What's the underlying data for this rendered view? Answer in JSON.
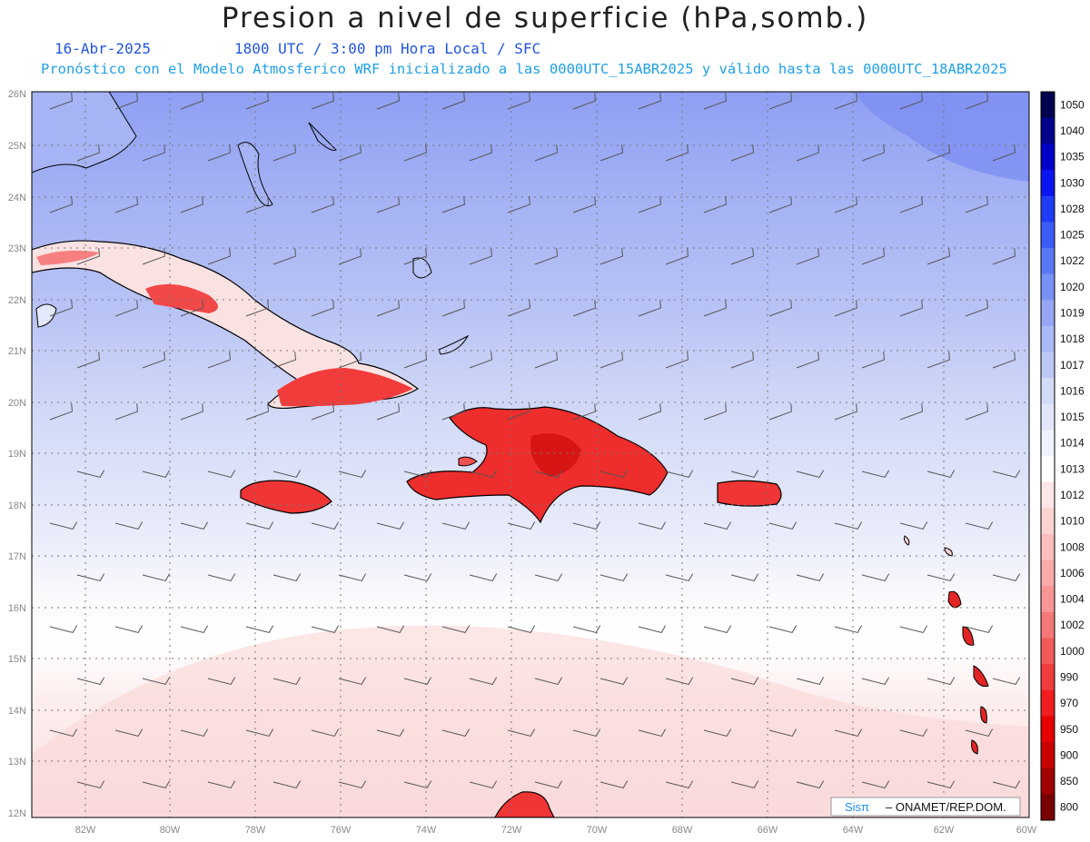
{
  "header": {
    "title": "Presion a nivel de superficie (hPa,somb.)",
    "date": "16-Abr-2025",
    "time_info": "1800 UTC / 3:00 pm Hora Local / SFC",
    "model_info": "Pronóstico con el Modelo Atmosferico WRF inicializado a las 0000UTC_15ABR2025 y válido hasta las  0000UTC_18ABR2025"
  },
  "map": {
    "lat_labels": [
      "26N",
      "25N",
      "24N",
      "23N",
      "22N",
      "21N",
      "20N",
      "19N",
      "18N",
      "17N",
      "16N",
      "15N",
      "14N",
      "13N",
      "12N"
    ],
    "lon_labels": [
      "82W",
      "80W",
      "78W",
      "76W",
      "74W",
      "72W",
      "70W",
      "68W",
      "66W",
      "64W",
      "62W",
      "60W"
    ],
    "credit_brand": "Sisπ",
    "credit_text": "– ONAMET/REP.DOM."
  },
  "colorbar": {
    "levels": [
      "1050",
      "1040",
      "1035",
      "1030",
      "1028",
      "1025",
      "1022",
      "1020",
      "1019",
      "1018",
      "1017",
      "1016",
      "1015",
      "1014",
      "1013",
      "1012",
      "1010",
      "1008",
      "1006",
      "1004",
      "1002",
      "1000",
      "990",
      "970",
      "950",
      "900",
      "850",
      "800"
    ],
    "colors": [
      "#000050",
      "#00008c",
      "#0000c8",
      "#0a14f0",
      "#1e3cf5",
      "#3c5af5",
      "#5a78f5",
      "#7891f5",
      "#96a5f5",
      "#aab9f5",
      "#bec8f5",
      "#d2dcf7",
      "#e1e6fa",
      "#f0f2fc",
      "#ffffff",
      "#fde6e6",
      "#fcd2d2",
      "#fbbebe",
      "#faaaaa",
      "#f89696",
      "#f57878",
      "#f25a5a",
      "#f03c3c",
      "#f01e1e",
      "#e60000",
      "#c80000",
      "#a00000",
      "#780000"
    ]
  }
}
